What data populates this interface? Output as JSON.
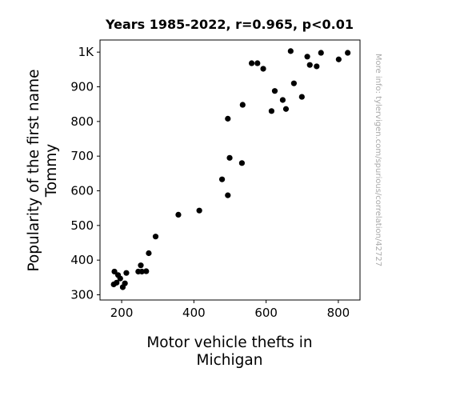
{
  "chart_data": {
    "type": "scatter",
    "title": "Years 1985-2022, r=0.965, p<0.01",
    "xlabel_lines": [
      "Motor vehicle thefts in",
      "Michigan"
    ],
    "ylabel_lines": [
      "Popularity of the first name",
      "Tommy"
    ],
    "xlim": [
      140,
      860
    ],
    "ylim": [
      285,
      1035
    ],
    "xticks": [
      {
        "value": 200,
        "label": "200"
      },
      {
        "value": 400,
        "label": "400"
      },
      {
        "value": 600,
        "label": "600"
      },
      {
        "value": 800,
        "label": "800"
      }
    ],
    "yticks": [
      {
        "value": 300,
        "label": "300"
      },
      {
        "value": 400,
        "label": "400"
      },
      {
        "value": 500,
        "label": "500"
      },
      {
        "value": 600,
        "label": "600"
      },
      {
        "value": 700,
        "label": "700"
      },
      {
        "value": 800,
        "label": "800"
      },
      {
        "value": 900,
        "label": "900"
      },
      {
        "value": 1000,
        "label": "1K"
      }
    ],
    "grid": false,
    "marker_color": "#000000",
    "watermark": "More info: tylervigen.com/spurious/correlation/42727",
    "points": [
      {
        "x": 178,
        "y": 330
      },
      {
        "x": 180,
        "y": 367
      },
      {
        "x": 186,
        "y": 335
      },
      {
        "x": 190,
        "y": 357
      },
      {
        "x": 196,
        "y": 347
      },
      {
        "x": 203,
        "y": 322
      },
      {
        "x": 209,
        "y": 333
      },
      {
        "x": 213,
        "y": 363
      },
      {
        "x": 246,
        "y": 367
      },
      {
        "x": 253,
        "y": 385
      },
      {
        "x": 256,
        "y": 367
      },
      {
        "x": 268,
        "y": 368
      },
      {
        "x": 275,
        "y": 420
      },
      {
        "x": 294,
        "y": 468
      },
      {
        "x": 357,
        "y": 531
      },
      {
        "x": 415,
        "y": 543
      },
      {
        "x": 478,
        "y": 633
      },
      {
        "x": 494,
        "y": 587
      },
      {
        "x": 494,
        "y": 808
      },
      {
        "x": 499,
        "y": 695
      },
      {
        "x": 533,
        "y": 680
      },
      {
        "x": 535,
        "y": 848
      },
      {
        "x": 560,
        "y": 968
      },
      {
        "x": 576,
        "y": 968
      },
      {
        "x": 592,
        "y": 952
      },
      {
        "x": 615,
        "y": 830
      },
      {
        "x": 624,
        "y": 888
      },
      {
        "x": 646,
        "y": 862
      },
      {
        "x": 655,
        "y": 836
      },
      {
        "x": 668,
        "y": 1003
      },
      {
        "x": 677,
        "y": 910
      },
      {
        "x": 699,
        "y": 871
      },
      {
        "x": 714,
        "y": 987
      },
      {
        "x": 721,
        "y": 963
      },
      {
        "x": 740,
        "y": 959
      },
      {
        "x": 752,
        "y": 998
      },
      {
        "x": 801,
        "y": 979
      },
      {
        "x": 826,
        "y": 998
      }
    ]
  }
}
